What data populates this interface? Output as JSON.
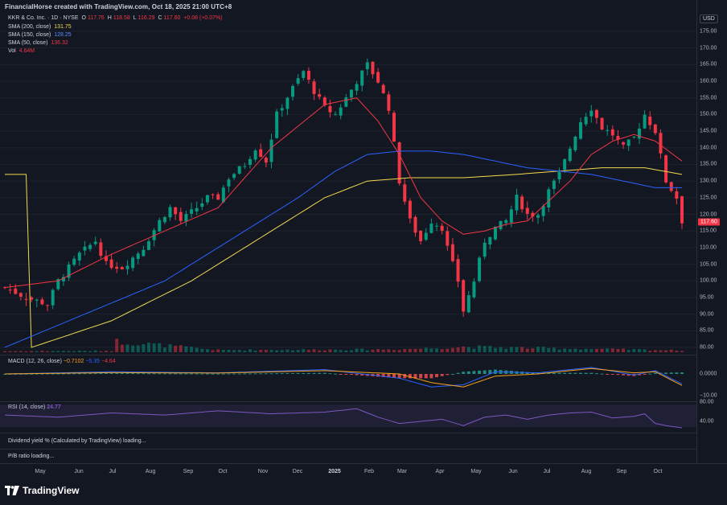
{
  "header": {
    "credit": "FinancialHorse created with TradingView.com, Oct 18, 2025 21:00 UTC+8"
  },
  "symbol": {
    "name": "KKR & Co. Inc. · 1D · NYSE",
    "o_label": "O",
    "o": "117.76",
    "h_label": "H",
    "h": "118.58",
    "l_label": "L",
    "l": "116.29",
    "c_label": "C",
    "c": "117.60",
    "change": "+0.08 (+0.07%)"
  },
  "indicators": [
    {
      "label": "SMA (200, close)",
      "value": "131.75",
      "color": "#f2d94e"
    },
    {
      "label": "SMA (150, close)",
      "value": "128.25",
      "color": "#2962ff"
    },
    {
      "label": "SMA (50, close)",
      "value": "136.32",
      "color": "#f23645"
    },
    {
      "label": "Vol",
      "value": "4.64M",
      "color": "#f23645"
    }
  ],
  "currency": "USD",
  "price_axis": [
    "175.00",
    "170.00",
    "165.00",
    "160.00",
    "155.00",
    "150.00",
    "145.00",
    "140.00",
    "135.00",
    "130.00",
    "125.00",
    "120.00",
    "115.00",
    "110.00",
    "105.00",
    "100.00",
    "95.00",
    "90.00",
    "85.00",
    "80.00"
  ],
  "price_badge": {
    "value": "117.60",
    "color": "#f23645"
  },
  "macd": {
    "label": "MACD (12, 26, close)",
    "v1": "−0.7102",
    "v2": "−5.35",
    "v3": "−4.64",
    "axis": [
      "0.0000",
      "−10.00"
    ]
  },
  "rsi": {
    "label": "RSI (14, close)",
    "value": "24.77",
    "axis": [
      "80.00",
      "40.00"
    ]
  },
  "dividend": {
    "label": "Dividend yield % (Calculated by TradingView) loading..."
  },
  "pb": {
    "label": "P/B ratio loading..."
  },
  "time_axis": [
    "May",
    "Jun",
    "Jul",
    "Aug",
    "Sep",
    "Oct",
    "Nov",
    "Dec",
    "2025",
    "Feb",
    "Mar",
    "Apr",
    "May",
    "Jun",
    "Jul",
    "Aug",
    "Sep",
    "Oct"
  ],
  "branding": {
    "name": "TradingView"
  },
  "colors": {
    "up": "#089981",
    "down": "#f23645",
    "sma200": "#f2d94e",
    "sma150": "#2962ff",
    "sma50": "#f23645",
    "rsi": "#7e57c2"
  },
  "chart_data": {
    "type": "candlestick",
    "ylim": [
      78,
      178
    ],
    "approx_close_path": [
      [
        0,
        98
      ],
      [
        4,
        95
      ],
      [
        8,
        93
      ],
      [
        10,
        100
      ],
      [
        14,
        108
      ],
      [
        17,
        112
      ],
      [
        19,
        105
      ],
      [
        22,
        104
      ],
      [
        26,
        110
      ],
      [
        29,
        118
      ],
      [
        31,
        122
      ],
      [
        33,
        118
      ],
      [
        36,
        122
      ],
      [
        38,
        125
      ],
      [
        40,
        125
      ],
      [
        42,
        131
      ],
      [
        45,
        135
      ],
      [
        47,
        140
      ],
      [
        49,
        136
      ],
      [
        51,
        150
      ],
      [
        54,
        158
      ],
      [
        56,
        163
      ],
      [
        58,
        157
      ],
      [
        60,
        152
      ],
      [
        62,
        150
      ],
      [
        64,
        155
      ],
      [
        66,
        160
      ],
      [
        68,
        165
      ],
      [
        70,
        160
      ],
      [
        72,
        152
      ],
      [
        74,
        130
      ],
      [
        76,
        118
      ],
      [
        78,
        112
      ],
      [
        80,
        118
      ],
      [
        82,
        116
      ],
      [
        83,
        110
      ],
      [
        85,
        100
      ],
      [
        86,
        91
      ],
      [
        88,
        100
      ],
      [
        90,
        112
      ],
      [
        92,
        116
      ],
      [
        94,
        118
      ],
      [
        96,
        125
      ],
      [
        98,
        120
      ],
      [
        100,
        120
      ],
      [
        102,
        127
      ],
      [
        104,
        132
      ],
      [
        106,
        140
      ],
      [
        108,
        148
      ],
      [
        110,
        152
      ],
      [
        112,
        146
      ],
      [
        114,
        144
      ],
      [
        116,
        140
      ],
      [
        118,
        143
      ],
      [
        120,
        150
      ],
      [
        122,
        145
      ],
      [
        124,
        130
      ],
      [
        126,
        125
      ],
      [
        127,
        118
      ]
    ],
    "sma50_path": [
      [
        0,
        98
      ],
      [
        10,
        100
      ],
      [
        20,
        108
      ],
      [
        30,
        115
      ],
      [
        40,
        122
      ],
      [
        50,
        140
      ],
      [
        60,
        153
      ],
      [
        66,
        155
      ],
      [
        70,
        148
      ],
      [
        74,
        138
      ],
      [
        78,
        125
      ],
      [
        82,
        118
      ],
      [
        86,
        114
      ],
      [
        90,
        115
      ],
      [
        94,
        117
      ],
      [
        98,
        118
      ],
      [
        102,
        124
      ],
      [
        106,
        130
      ],
      [
        110,
        138
      ],
      [
        114,
        142
      ],
      [
        118,
        144
      ],
      [
        122,
        142
      ],
      [
        127,
        136
      ]
    ],
    "sma150_path": [
      [
        0,
        80
      ],
      [
        15,
        90
      ],
      [
        30,
        100
      ],
      [
        45,
        115
      ],
      [
        55,
        125
      ],
      [
        62,
        133
      ],
      [
        68,
        138
      ],
      [
        74,
        139
      ],
      [
        80,
        139
      ],
      [
        86,
        138
      ],
      [
        92,
        136
      ],
      [
        98,
        134
      ],
      [
        104,
        133
      ],
      [
        110,
        132
      ],
      [
        116,
        130
      ],
      [
        122,
        128
      ],
      [
        127,
        128
      ]
    ],
    "sma200_path": [
      [
        5,
        80
      ],
      [
        20,
        88
      ],
      [
        35,
        100
      ],
      [
        50,
        115
      ],
      [
        60,
        125
      ],
      [
        68,
        130
      ],
      [
        76,
        131
      ],
      [
        86,
        131
      ],
      [
        96,
        132
      ],
      [
        104,
        133
      ],
      [
        112,
        134
      ],
      [
        120,
        134
      ],
      [
        127,
        132
      ]
    ],
    "volume_path": [
      [
        0,
        0.3
      ],
      [
        20,
        0.4
      ],
      [
        21,
        3
      ],
      [
        40,
        0.6
      ],
      [
        74,
        0.8
      ],
      [
        86,
        1.5
      ],
      [
        127,
        0.5
      ]
    ],
    "macd_path": [
      [
        0,
        0
      ],
      [
        20,
        1
      ],
      [
        40,
        0.5
      ],
      [
        60,
        2
      ],
      [
        74,
        -2
      ],
      [
        80,
        -6
      ],
      [
        86,
        -5
      ],
      [
        92,
        1
      ],
      [
        100,
        0.5
      ],
      [
        110,
        3
      ],
      [
        118,
        -0.5
      ],
      [
        122,
        1.5
      ],
      [
        127,
        -4.6
      ]
    ],
    "signal_path": [
      [
        0,
        0
      ],
      [
        20,
        0.6
      ],
      [
        40,
        0.4
      ],
      [
        60,
        1.5
      ],
      [
        74,
        0
      ],
      [
        80,
        -4
      ],
      [
        86,
        -6
      ],
      [
        92,
        -1
      ],
      [
        100,
        0
      ],
      [
        110,
        2.5
      ],
      [
        118,
        0.5
      ],
      [
        122,
        1
      ],
      [
        127,
        -5.3
      ]
    ],
    "rsi_path": [
      [
        0,
        55
      ],
      [
        10,
        50
      ],
      [
        20,
        60
      ],
      [
        30,
        55
      ],
      [
        40,
        65
      ],
      [
        50,
        58
      ],
      [
        60,
        62
      ],
      [
        66,
        70
      ],
      [
        70,
        50
      ],
      [
        74,
        35
      ],
      [
        78,
        40
      ],
      [
        82,
        45
      ],
      [
        86,
        30
      ],
      [
        90,
        50
      ],
      [
        94,
        55
      ],
      [
        98,
        45
      ],
      [
        102,
        55
      ],
      [
        106,
        60
      ],
      [
        110,
        62
      ],
      [
        114,
        48
      ],
      [
        118,
        52
      ],
      [
        120,
        58
      ],
      [
        122,
        35
      ],
      [
        124,
        30
      ],
      [
        127,
        24.77
      ]
    ]
  }
}
